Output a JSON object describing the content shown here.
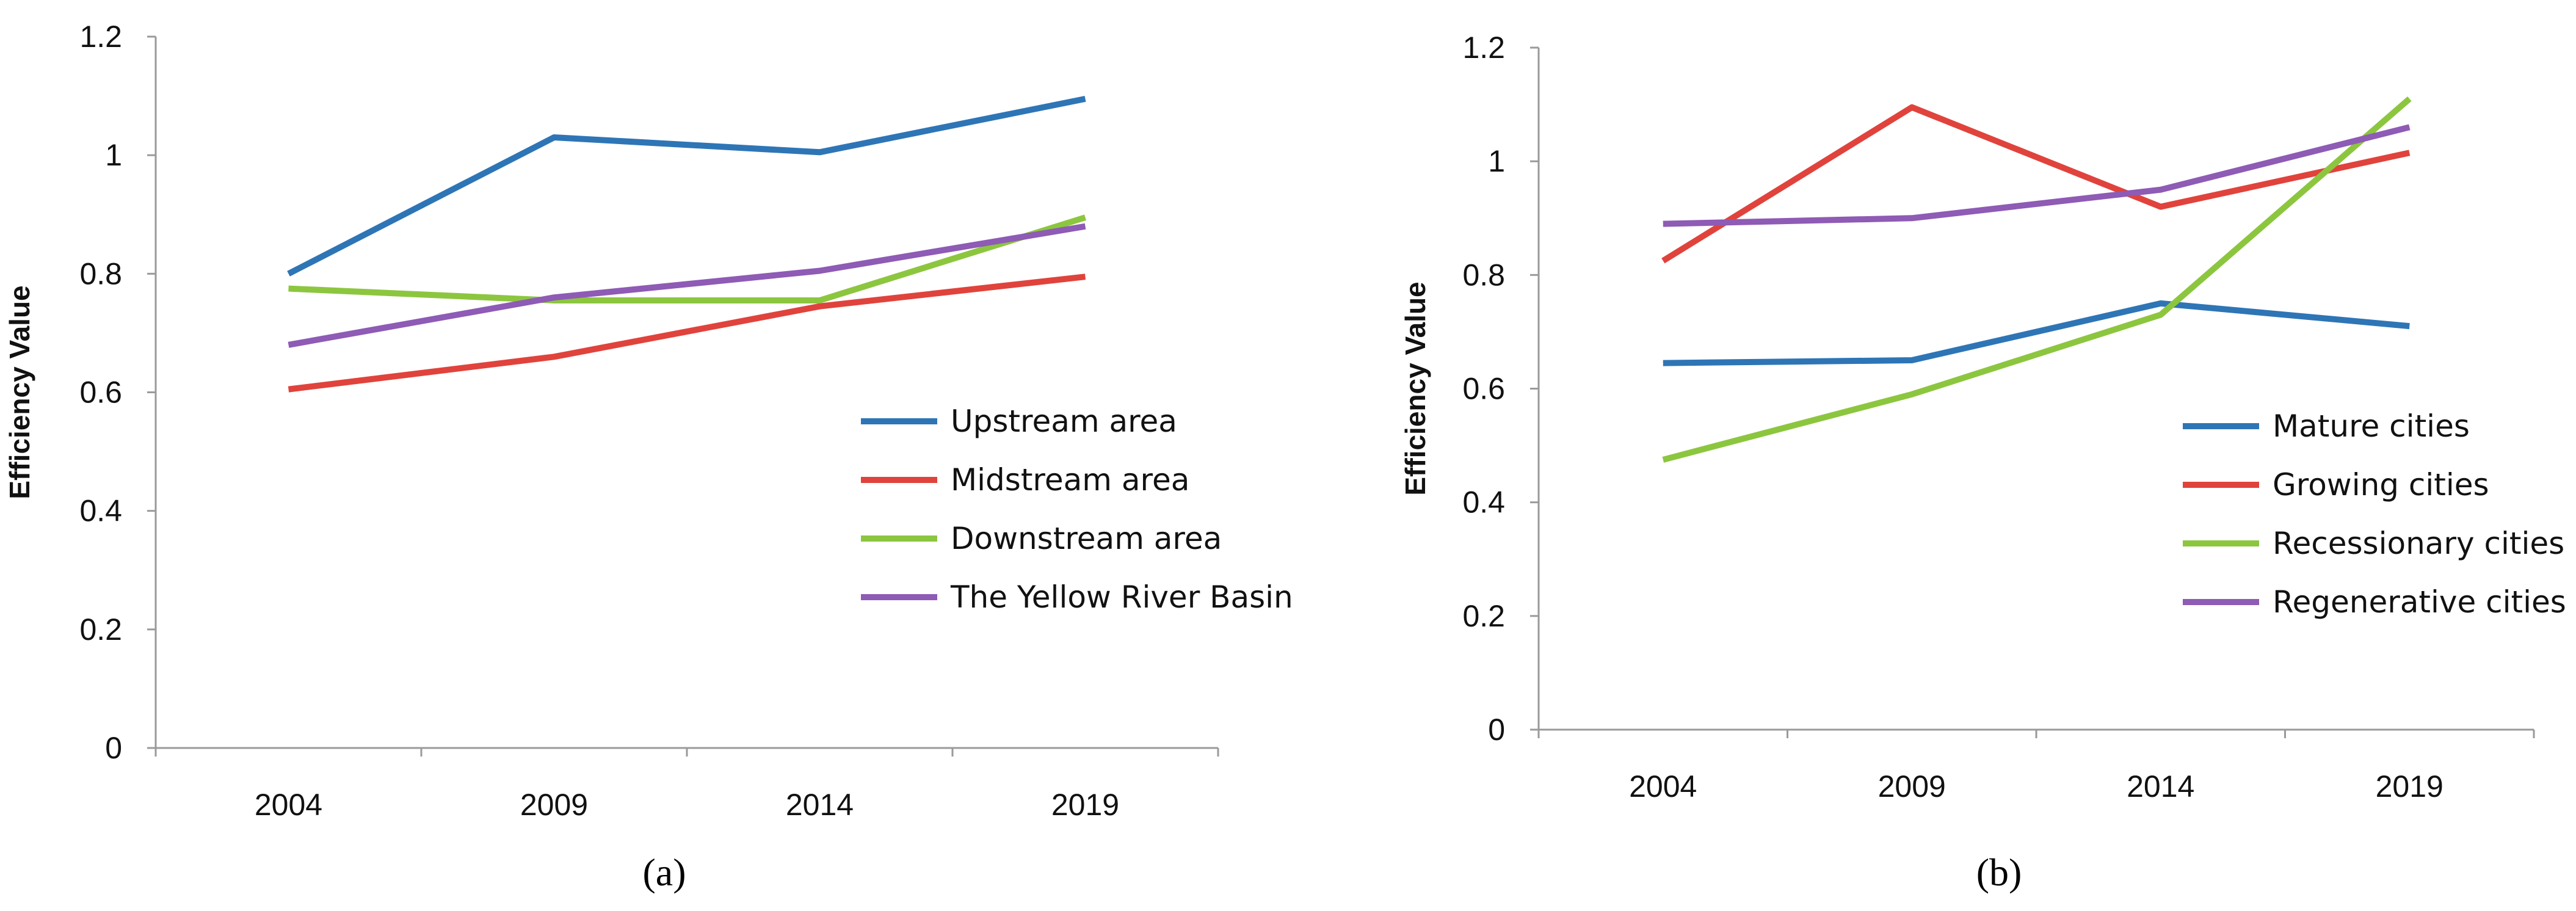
{
  "figure": {
    "panel_a_label": "(a)",
    "panel_b_label": "(b)"
  },
  "chart_data": [
    {
      "type": "line",
      "panel": "a",
      "title": "",
      "xlabel": "",
      "ylabel": "Efficiency Value",
      "ylim": [
        0,
        1.2
      ],
      "yticks": [
        "0",
        "0.2",
        "0.4",
        "0.6",
        "0.8",
        "1",
        "1.2"
      ],
      "categories": [
        "2004",
        "2009",
        "2014",
        "2019"
      ],
      "legend_position": "right-middle",
      "series": [
        {
          "name": "Upstream area",
          "color": "#2E75B6",
          "values": [
            0.8,
            1.03,
            1.005,
            1.095
          ]
        },
        {
          "name": "Midstream area",
          "color": "#E0433C",
          "values": [
            0.605,
            0.66,
            0.745,
            0.795
          ]
        },
        {
          "name": "Downstream area",
          "color": "#8CC63F",
          "values": [
            0.775,
            0.755,
            0.755,
            0.895
          ]
        },
        {
          "name": "The Yellow River Basin",
          "color": "#8E5BB5",
          "values": [
            0.68,
            0.76,
            0.805,
            0.88
          ]
        }
      ]
    },
    {
      "type": "line",
      "panel": "b",
      "title": "",
      "xlabel": "",
      "ylabel": "Efficiency Value",
      "ylim": [
        0,
        1.2
      ],
      "yticks": [
        "0",
        "0.2",
        "0.4",
        "0.6",
        "0.8",
        "1",
        "1.2"
      ],
      "categories": [
        "2004",
        "2009",
        "2014",
        "2019"
      ],
      "legend_position": "right-bottom",
      "series": [
        {
          "name": "Mature cities",
          "color": "#2E75B6",
          "values": [
            0.645,
            0.65,
            0.75,
            0.71
          ]
        },
        {
          "name": "Growing cities",
          "color": "#E0433C",
          "values": [
            0.825,
            1.095,
            0.92,
            1.015
          ]
        },
        {
          "name": "Recessionary cities",
          "color": "#8CC63F",
          "values": [
            0.475,
            0.59,
            0.73,
            1.11
          ]
        },
        {
          "name": "Regenerative cities",
          "color": "#8E5BB5",
          "values": [
            0.89,
            0.9,
            0.95,
            1.06
          ]
        }
      ]
    }
  ]
}
